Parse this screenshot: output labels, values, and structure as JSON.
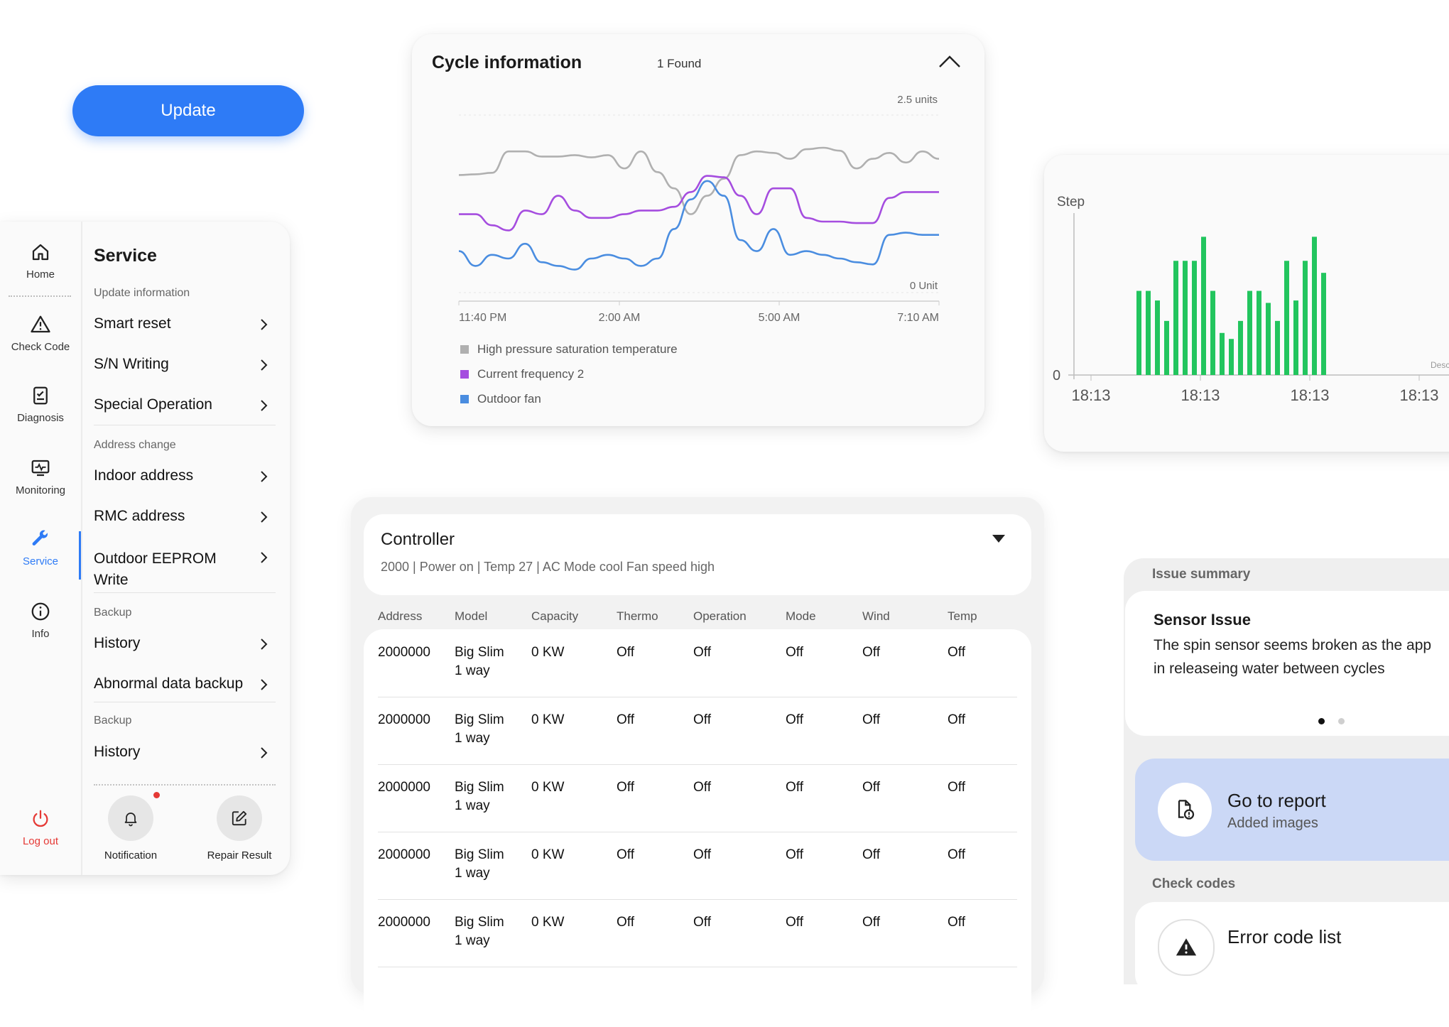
{
  "update_button": {
    "label": "Update"
  },
  "rail": {
    "items": [
      {
        "label": "Home",
        "icon": "home-icon"
      },
      {
        "label": "Check Code",
        "icon": "warning-icon"
      },
      {
        "label": "Diagnosis",
        "icon": "clipboard-check-icon"
      },
      {
        "label": "Monitoring",
        "icon": "monitor-pulse-icon"
      },
      {
        "label": "Service",
        "icon": "wrench-icon",
        "active": true
      },
      {
        "label": "Info",
        "icon": "info-icon"
      }
    ],
    "logout": {
      "label": "Log out",
      "icon": "power-icon",
      "color": "#e53935"
    },
    "active_color": "#2e7bf6"
  },
  "service": {
    "title": "Service",
    "groups": [
      {
        "label": "Update information",
        "items": [
          "Smart reset",
          "S/N Writing",
          "Special Operation"
        ]
      },
      {
        "label": "Address change",
        "items": [
          "Indoor address",
          "RMC address",
          "Outdoor EEPROM Write"
        ]
      },
      {
        "label": "Backup",
        "items": [
          "History",
          "Abnormal data backup"
        ]
      },
      {
        "label": "Backup",
        "items": [
          "History"
        ]
      }
    ],
    "actions": [
      {
        "label": "Notification",
        "icon": "bell-icon",
        "has_badge": true
      },
      {
        "label": "Repair Result",
        "icon": "edit-icon"
      }
    ]
  },
  "cycle": {
    "title": "Cycle information",
    "count": "1 Found",
    "y_max_label": "2.5 units",
    "y_min_label": "0 Unit",
    "x_ticks": [
      "11:40 PM",
      "2:00 AM",
      "5:00 AM",
      "7:10 AM"
    ],
    "legend": [
      {
        "name": "High pressure saturation temperature",
        "color": "#b0b0b0"
      },
      {
        "name": "Current frequency 2",
        "color": "#a54ddf"
      },
      {
        "name": "Outdoor fan",
        "color": "#4a8de0"
      }
    ]
  },
  "chart_data": [
    {
      "type": "line",
      "ylim": [
        0,
        2.5
      ],
      "x_ticks": [
        "11:40 PM",
        "2:00 AM",
        "5:00 AM",
        "7:10 AM"
      ],
      "y_labels": [
        "2.5 units",
        "0 Unit"
      ],
      "legend_position": "bottom-left",
      "series": [
        {
          "name": "High pressure saturation temperature",
          "color": "#b0b0b0",
          "values": [
            1.63,
            1.64,
            1.66,
            1.95,
            1.95,
            1.88,
            1.88,
            1.9,
            1.87,
            1.9,
            1.72,
            1.95,
            1.67,
            1.45,
            1.1,
            1.35,
            1.58,
            1.9,
            1.95,
            1.93,
            1.85,
            1.98,
            2.0,
            1.96,
            1.72,
            1.85,
            1.93,
            1.8,
            1.95,
            1.85
          ]
        },
        {
          "name": "Current frequency 2",
          "color": "#a54ddf",
          "values": [
            1.1,
            1.1,
            0.95,
            0.88,
            1.15,
            1.1,
            1.35,
            1.15,
            1.05,
            1.05,
            1.1,
            1.15,
            1.15,
            1.2,
            1.4,
            1.62,
            1.6,
            1.35,
            1.1,
            1.45,
            1.45,
            1.05,
            1.0,
            1.0,
            0.98,
            0.98,
            1.32,
            1.4,
            1.4,
            1.4
          ]
        },
        {
          "name": "Outdoor fan",
          "color": "#4a8de0",
          "values": [
            0.6,
            0.4,
            0.55,
            0.5,
            0.7,
            0.45,
            0.4,
            0.35,
            0.5,
            0.55,
            0.5,
            0.4,
            0.5,
            0.9,
            1.3,
            1.55,
            1.35,
            0.75,
            0.6,
            0.9,
            0.55,
            0.6,
            0.55,
            0.5,
            0.45,
            0.42,
            0.82,
            0.85,
            0.82,
            0.82
          ]
        }
      ]
    },
    {
      "type": "bar",
      "ylabel": "Step",
      "y_min_label": "0",
      "x_ticks": [
        "18:13",
        "18:13",
        "18:13",
        "18:13"
      ],
      "bar_color": "#22c55e",
      "values": [
        70,
        70,
        62,
        45,
        95,
        95,
        95,
        115,
        70,
        35,
        30,
        45,
        70,
        70,
        60,
        45,
        95,
        62,
        95,
        115,
        85
      ],
      "ylim": [
        0,
        130
      ],
      "cutoff_label": "Desc"
    }
  ],
  "controller": {
    "name": "Controller",
    "summary": "2000 | Power on | Temp 27 | AC Mode cool  Fan speed high",
    "columns": [
      "Address",
      "Model",
      "Capacity",
      "Thermo",
      "Operation",
      "Mode",
      "Wind",
      "Temp"
    ],
    "rows": [
      [
        "2000000",
        "Big Slim\n1 way",
        "0 KW",
        "Off",
        "Off",
        "Off",
        "Off",
        "Off"
      ],
      [
        "2000000",
        "Big Slim\n1 way",
        "0 KW",
        "Off",
        "Off",
        "Off",
        "Off",
        "Off"
      ],
      [
        "2000000",
        "Big Slim\n1 way",
        "0 KW",
        "Off",
        "Off",
        "Off",
        "Off",
        "Off"
      ],
      [
        "2000000",
        "Big Slim\n1 way",
        "0 KW",
        "Off",
        "Off",
        "Off",
        "Off",
        "Off"
      ],
      [
        "2000000",
        "Big Slim\n1 way",
        "0 KW",
        "Off",
        "Off",
        "Off",
        "Off",
        "Off"
      ]
    ]
  },
  "issue": {
    "section_label": "Issue summary",
    "title": "Sensor Issue",
    "description_line1": "The spin sensor seems broken as the app",
    "description_line2": "in releaseing water between cycles",
    "pager": {
      "count": 2,
      "active": 0
    },
    "report": {
      "title": "Go to report",
      "subtitle": "Added images",
      "icon": "file-alert-icon",
      "bg": "#cbd8f6"
    },
    "codes_label": "Check codes",
    "error_list": {
      "title": "Error code list",
      "icon": "warning-icon"
    }
  }
}
